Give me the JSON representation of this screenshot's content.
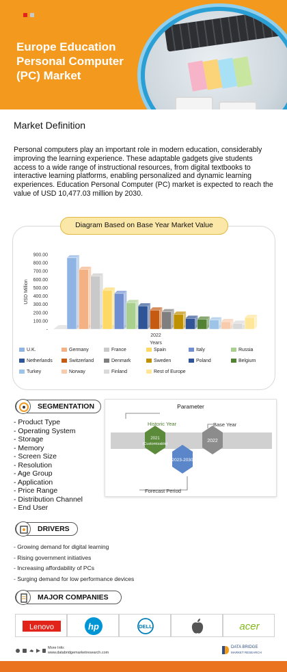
{
  "header": {
    "title_lines": [
      "Europe Education",
      "Personal Computer",
      "(PC) Market"
    ],
    "brand_colors": {
      "orange": "#f39a1e",
      "red": "#e2231a",
      "blue": "#2a9fd6"
    }
  },
  "market_definition": {
    "title": "Market Definition",
    "text": "Personal computers play an important role in modern education, considerably improving the learning experience. These adaptable gadgets give students access to a wide range of instructional resources, from digital textbooks to interactive learning platforms, enabling personalized and dynamic learning experiences. Education Personal Computer (PC) market is expected to reach the value of USD 10,477.03 million by 2030."
  },
  "chart_data": {
    "type": "bar",
    "title": "Diagram Based on Base Year Market Value",
    "xlabel": "Years",
    "ylabel": "USD Million",
    "x_category": "2022",
    "yticks": [
      "900.00",
      "800.00",
      "700.00",
      "600.00",
      "500.00",
      "400.00",
      "300.00",
      "200.00",
      "100.00",
      "-"
    ],
    "ylim": [
      0,
      900
    ],
    "grid": false,
    "legend_position": "bottom",
    "series": [
      {
        "name": "U.K.",
        "value": 860,
        "color": "#8fb4e3"
      },
      {
        "name": "Germany",
        "value": 720,
        "color": "#f4b183"
      },
      {
        "name": "France",
        "value": 640,
        "color": "#c9c9c9"
      },
      {
        "name": "Spain",
        "value": 470,
        "color": "#ffd966"
      },
      {
        "name": "Italy",
        "value": 430,
        "color": "#6f8fd0"
      },
      {
        "name": "Russia",
        "value": 320,
        "color": "#a9d08e"
      },
      {
        "name": "Netherlands",
        "value": 280,
        "color": "#2f5597"
      },
      {
        "name": "Switzerland",
        "value": 230,
        "color": "#c55a11"
      },
      {
        "name": "Denmark",
        "value": 210,
        "color": "#7f7f7f"
      },
      {
        "name": "Sweden",
        "value": 180,
        "color": "#bf9000"
      },
      {
        "name": "Poland",
        "value": 130,
        "color": "#305496"
      },
      {
        "name": "Belgium",
        "value": 120,
        "color": "#548235"
      },
      {
        "name": "Turkey",
        "value": 110,
        "color": "#9dc3e6"
      },
      {
        "name": "Norway",
        "value": 90,
        "color": "#f8cbad"
      },
      {
        "name": "Finland",
        "value": 70,
        "color": "#d9d9d9"
      },
      {
        "name": "Rest of Europe",
        "value": 140,
        "color": "#ffe699"
      }
    ]
  },
  "segmentation": {
    "heading": "SEGMENTATION",
    "items": [
      "Product Type",
      "Operating System",
      "Storage",
      "Memory",
      "Screen Size",
      "Resolution",
      "Age Group",
      "Application",
      "Price Range",
      "Distribution Channel",
      "End User"
    ]
  },
  "parameter": {
    "title": "Parameter",
    "historic_label": "Historic Year",
    "base_label": "Base Year",
    "forecast_label": "Forecast Period",
    "hex_historic_line1": "2021",
    "hex_historic_line2": "(Customizable)",
    "hex_base": "2022",
    "hex_forecast": "2023-2030"
  },
  "drivers": {
    "heading": "DRIVERS",
    "items": [
      "Growing demand for digital learning",
      "Rising government initiatives",
      "Increasing affordability of PCs",
      "Surging demand for low performance devices"
    ]
  },
  "companies": {
    "heading": "MAJOR COMPANIES",
    "logos": [
      "Lenovo",
      "hp",
      "DELL",
      "apple-logo",
      "acer"
    ]
  },
  "footer": {
    "more_info": "More Info:",
    "url": "www.databridgemarketresearch.com",
    "brand_line1": "DATA BRIDGE",
    "brand_line2": "MARKET RESEARCH"
  }
}
